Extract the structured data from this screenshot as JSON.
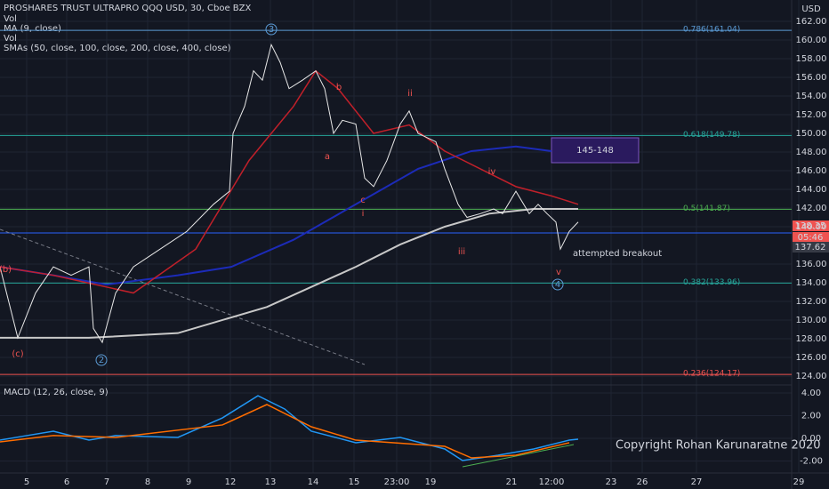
{
  "chart_data": [
    {
      "type": "line",
      "title": "PROSHARES TRUST ULTRAPRO QQQ USD, 30, Cboe BZX",
      "legend_lines": [
        "Vol",
        "MA (9, close)",
        "Vol",
        "SMAs (50, close, 100, close, 200, close, 400, close)"
      ],
      "currency": "USD",
      "xlim": [
        0,
        182
      ],
      "xticks": [
        {
          "value": 6,
          "label": "5"
        },
        {
          "value": 15,
          "label": "6"
        },
        {
          "value": 24,
          "label": "7"
        },
        {
          "value": 33.2,
          "label": "8"
        },
        {
          "value": 42.4,
          "label": "9"
        },
        {
          "value": 51.8,
          "label": "12"
        },
        {
          "value": 60.8,
          "label": "13"
        },
        {
          "value": 70.4,
          "label": "14"
        },
        {
          "value": 79.6,
          "label": "15"
        },
        {
          "value": 89.2,
          "label": "23:00"
        },
        {
          "value": 96.8,
          "label": "19"
        },
        {
          "value": 115,
          "label": "21"
        },
        {
          "value": 124,
          "label": "12:00"
        },
        {
          "value": 137.4,
          "label": "23"
        },
        {
          "value": 144.4,
          "label": "26"
        },
        {
          "value": 156.6,
          "label": "27"
        },
        {
          "value": 179.6,
          "label": "29"
        }
      ],
      "ylim": [
        123.14,
        164.29
      ],
      "yticks": [
        {
          "value": 124,
          "label": "124.00"
        },
        {
          "value": 126,
          "label": "126.00"
        },
        {
          "value": 128,
          "label": "128.00"
        },
        {
          "value": 130,
          "label": "130.00"
        },
        {
          "value": 132,
          "label": "132.00"
        },
        {
          "value": 134,
          "label": "134.00"
        },
        {
          "value": 136,
          "label": "136.00"
        },
        {
          "value": 140,
          "label": "140.00"
        },
        {
          "value": 142,
          "label": "142.00"
        },
        {
          "value": 144,
          "label": "144.00"
        },
        {
          "value": 146,
          "label": "146.00"
        },
        {
          "value": 148,
          "label": "148.00"
        },
        {
          "value": 150,
          "label": "150.00"
        },
        {
          "value": 152,
          "label": "152.00"
        },
        {
          "value": 154,
          "label": "154.00"
        },
        {
          "value": 156,
          "label": "156.00"
        },
        {
          "value": 158,
          "label": "158.00"
        },
        {
          "value": 160,
          "label": "160.00"
        },
        {
          "value": 162,
          "label": "162.00"
        }
      ],
      "series": [
        {
          "color": "#c8c8c8",
          "width": 2,
          "x": [
            0,
            20,
            40,
            60,
            80,
            90,
            100,
            110,
            120,
            130
          ],
          "values": [
            128.1,
            128.1,
            128.6,
            131.4,
            135.7,
            138.1,
            140.0,
            141.4,
            141.9,
            141.9
          ]
        },
        {
          "color": "#1c2bb8",
          "width": 2,
          "x": [
            0,
            12,
            24,
            40,
            52,
            66,
            80,
            94,
            106,
            116,
            124
          ],
          "values": [
            135.7,
            134.8,
            133.8,
            134.8,
            135.7,
            138.6,
            142.4,
            146.2,
            148.1,
            148.6,
            148.1
          ]
        },
        {
          "color": "#c0202a",
          "width": 1.5,
          "x": [
            0,
            12,
            30,
            44,
            56,
            66,
            71,
            76,
            84,
            92,
            100,
            108,
            116,
            124,
            130
          ],
          "values": [
            135.7,
            134.8,
            132.9,
            137.6,
            147.1,
            152.9,
            156.7,
            154.8,
            150.0,
            150.9,
            148.1,
            146.2,
            144.3,
            143.3,
            142.4
          ]
        },
        {
          "color": "#e8e8e8",
          "width": 1,
          "x": [
            0,
            4,
            8,
            12,
            16,
            20,
            21,
            23,
            26,
            30,
            36,
            42,
            48,
            51.6,
            52.4,
            55,
            57,
            59,
            61,
            63,
            65,
            68,
            71,
            73,
            75,
            77,
            80,
            82,
            84,
            87,
            90,
            92,
            94,
            98,
            100,
            103,
            105,
            108,
            111,
            113,
            116,
            119,
            121,
            123,
            125,
            126,
            128,
            130
          ],
          "values": [
            135.7,
            128.1,
            132.9,
            135.7,
            134.8,
            135.7,
            129.1,
            127.6,
            132.9,
            135.7,
            137.6,
            139.5,
            142.4,
            143.8,
            150.0,
            152.9,
            156.7,
            155.7,
            159.5,
            157.6,
            154.8,
            155.7,
            156.7,
            154.8,
            150.0,
            151.4,
            151.0,
            145.2,
            144.3,
            147.1,
            151.0,
            152.4,
            150.0,
            149.1,
            146.2,
            142.4,
            141.0,
            141.4,
            141.9,
            141.4,
            143.8,
            141.4,
            142.4,
            141.4,
            140.5,
            137.6,
            139.5,
            140.5
          ]
        }
      ],
      "levels": [
        {
          "label": "0.786(161.04)",
          "value": 161.04,
          "color": "#5b9bd5"
        },
        {
          "label": "0.618(149.78)",
          "value": 149.78,
          "color": "#26a69a"
        },
        {
          "label": "0.5(141.87)",
          "value": 141.87,
          "color": "#4caf50"
        },
        {
          "label": "0.382(133.96)",
          "value": 133.96,
          "color": "#26a69a"
        },
        {
          "label": "0.236(124.17)",
          "value": 124.17,
          "color": "#ef5350"
        }
      ],
      "waves": [
        "3",
        "a",
        "b",
        "c",
        "i",
        "ii",
        "iii",
        "iv",
        "v",
        "4",
        "2",
        "(b)",
        "(c)"
      ],
      "target_box": "145-148",
      "annotation": "attempted breakout",
      "copyright": "Copyright Rohan Karunaratne 2020",
      "price_tags": [
        "138.35",
        "05:46",
        "137.62"
      ]
    },
    {
      "type": "line",
      "title": "MACD (12, 26, close, 9)",
      "xlim": [
        0,
        182
      ],
      "ylim": [
        -3.06,
        4.55
      ],
      "yticks": [
        {
          "value": 4,
          "label": "4.00"
        },
        {
          "value": 2,
          "label": "2.00"
        },
        {
          "value": 0,
          "label": "0.00"
        },
        {
          "value": -2,
          "label": "-2.00"
        }
      ],
      "series": [
        {
          "color": "#2196f3",
          "width": 1.5,
          "x": [
            0,
            6,
            12,
            20,
            26,
            40,
            50,
            58,
            64,
            70,
            80,
            90,
            100,
            104,
            112,
            120,
            128,
            130
          ],
          "values": [
            -0.16,
            0.24,
            0.63,
            -0.16,
            0.24,
            0.08,
            1.8,
            3.76,
            2.59,
            0.63,
            -0.39,
            0.08,
            -0.94,
            -1.96,
            -1.49,
            -0.94,
            -0.16,
            -0.08
          ]
        },
        {
          "color": "#ff6d00",
          "width": 1.5,
          "x": [
            0,
            12,
            26,
            50,
            60,
            70,
            80,
            100,
            106,
            116,
            128
          ],
          "values": [
            -0.31,
            0.24,
            0.08,
            1.18,
            2.98,
            1.02,
            -0.16,
            -0.71,
            -1.73,
            -1.49,
            -0.39
          ]
        }
      ]
    }
  ]
}
